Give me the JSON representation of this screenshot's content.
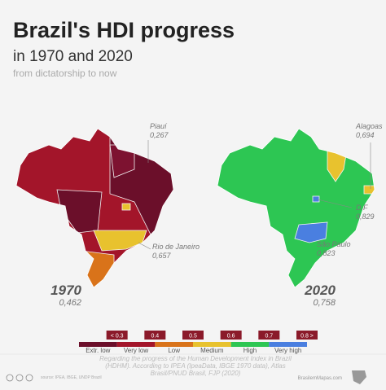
{
  "header": {
    "title": "Brazil's HDI progress",
    "subtitle": "in 1970 and 2020",
    "tagline": "from dictatorship to now"
  },
  "maps": [
    {
      "year": "1970",
      "hdi": "0,462",
      "annotations": [
        {
          "label": "Piauí",
          "value": "0,267"
        },
        {
          "label": "Rio de Janeiro",
          "value": "0,657"
        }
      ]
    },
    {
      "year": "2020",
      "hdi": "0,758",
      "annotations": [
        {
          "label": "Alagoas",
          "value": "0,694"
        },
        {
          "label": "D.F",
          "value": "0,829"
        },
        {
          "label": "São Paulo",
          "value": "0,823"
        }
      ]
    }
  ],
  "legend": {
    "items": [
      {
        "tick": "< 0.3",
        "label": "Extr. low",
        "color": "#6b0f2a"
      },
      {
        "tick": "0.4",
        "label": "Very low",
        "color": "#a3152a"
      },
      {
        "tick": "0.5",
        "label": "Low",
        "color": "#d9731a"
      },
      {
        "tick": "0.6",
        "label": "Medium",
        "color": "#e8c22e"
      },
      {
        "tick": "0.7",
        "label": "High",
        "color": "#2dc653"
      },
      {
        "tick": "0.8 >",
        "label": "Very high",
        "color": "#4a7fe0"
      }
    ]
  },
  "footer": {
    "note": "Regarding the progress of the Human Development Index in Brazil (HDHM). According to IPEA (IpeaData, IBGE 1970 data), Atlas Brasil/PNUD Brasil, FJP (2020)",
    "source": "source: IPEA, IBGE, UNDP Brazil",
    "site": "BrasilemMapas.com"
  }
}
